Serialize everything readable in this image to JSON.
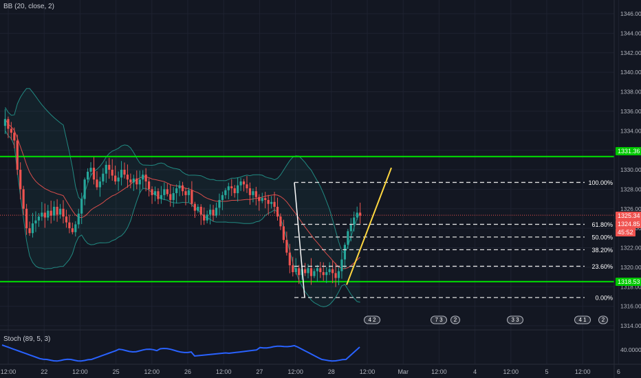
{
  "indicators": {
    "bb_label": "BB (20, close, 2)",
    "stoch_label": "Stoch (89, 5, 3)"
  },
  "y_axis": {
    "ticks": [
      "1346.00",
      "1344.00",
      "1342.00",
      "1340.00",
      "1338.00",
      "1336.00",
      "1334.00",
      "1332.00",
      "1330.00",
      "1328.00",
      "1326.00",
      "1324.00",
      "1322.00",
      "1320.00",
      "1318.00",
      "1316.00",
      "1314.00"
    ],
    "stoch_tick": "40.0000"
  },
  "x_axis": {
    "ticks": [
      "12:00",
      "22",
      "12:00",
      "25",
      "12:00",
      "26",
      "12:00",
      "27",
      "12:00",
      "28",
      "12:00",
      "Mar",
      "12:00",
      "4",
      "12:00",
      "5",
      "12:00",
      "6"
    ]
  },
  "price_labels": {
    "upper_level": "1331.36",
    "current_price": "1325.34",
    "ma_value": "1324.85",
    "countdown": "45:52",
    "lower_level": "1318.53"
  },
  "fib_levels": [
    {
      "label": "100.00%",
      "price": 1328.7
    },
    {
      "label": "61.80%",
      "price": 1324.4
    },
    {
      "label": "50.00%",
      "price": 1323.1
    },
    {
      "label": "38.20%",
      "price": 1321.8
    },
    {
      "label": "23.60%",
      "price": 1320.1
    },
    {
      "label": "0.00%",
      "price": 1316.9
    }
  ],
  "colors": {
    "background": "#131722",
    "bull": "#26a69a",
    "bear": "#ef5350",
    "support_line": "#00e600",
    "trend_line": "#ffd740",
    "bb_band": "#26a69a",
    "bb_basis": "#ef5350",
    "stoch": "#2962ff",
    "grid": "#1e2230"
  },
  "events": [
    "4 2",
    "7 3",
    "2",
    "3 3",
    "4 1",
    "2"
  ],
  "chart_data": {
    "type": "candlestick",
    "support_resistance": [
      1331.36,
      1318.53
    ],
    "ylim": [
      1313.5,
      1347
    ],
    "stoch_value": 40,
    "ohlc_path": [
      1334.5,
      1335.2,
      1334.2,
      1333.8,
      1333,
      1330,
      1328,
      1326,
      1324,
      1323.5,
      1324.5,
      1324.8,
      1325.2,
      1325.6,
      1325.1,
      1325.8,
      1325.3,
      1326.2,
      1325.4,
      1326,
      1325.2,
      1324.6,
      1324,
      1323.6,
      1324.4,
      1325.5,
      1327,
      1329,
      1329.8,
      1330.2,
      1329,
      1328.2,
      1328.8,
      1329.6,
      1330.5,
      1330,
      1329.4,
      1328.8,
      1329.2,
      1330,
      1329.5,
      1329,
      1328.7,
      1329.1,
      1328.5,
      1329,
      1329.5,
      1328.8,
      1328,
      1327.4,
      1327.8,
      1327,
      1327.4,
      1328,
      1327.5,
      1326.9,
      1327.6,
      1328.1,
      1328.4,
      1327.8,
      1327.4,
      1327.9,
      1326.5,
      1325.8,
      1326.2,
      1325.4,
      1324.8,
      1325.4,
      1325.9,
      1325.3,
      1326.1,
      1326.9,
      1327.4,
      1327.9,
      1328.3,
      1328.1,
      1327.6,
      1328.4,
      1328.8,
      1328.5,
      1328.1,
      1327.4,
      1327.8,
      1327.2,
      1326.8,
      1327.1,
      1326.9,
      1326.5,
      1326.7,
      1326.2,
      1325.2,
      1324.2,
      1322.8,
      1321.5,
      1320.2,
      1319.5,
      1319.9,
      1319.2,
      1319.8,
      1319.4,
      1319.9,
      1319.1,
      1319.6,
      1319.9,
      1319.5,
      1319.2,
      1319.5,
      1319.8,
      1319.4,
      1318.9,
      1319.6,
      1320.8,
      1322.3,
      1323.7,
      1324.4,
      1325.1,
      1325.6,
      1325.3
    ]
  }
}
